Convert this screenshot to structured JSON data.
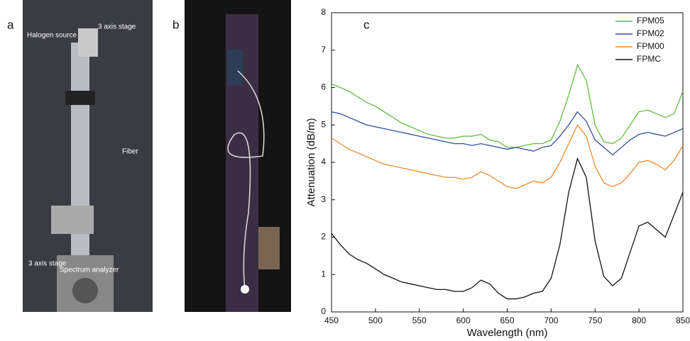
{
  "panels": {
    "a": "a",
    "b": "b"
  },
  "photo_labels": [
    "Halogen source",
    "3 axis stage",
    "Fiber",
    "3 axis stage",
    "Spectrum analyzer"
  ],
  "chart_data": {
    "type": "line",
    "label": "c",
    "x_label": "Wavelength  (nm)",
    "y_label": "Attenuation (dB/m)",
    "x": [
      450,
      460,
      470,
      480,
      490,
      500,
      510,
      520,
      530,
      540,
      550,
      560,
      570,
      580,
      590,
      600,
      610,
      620,
      630,
      640,
      650,
      660,
      670,
      680,
      690,
      700,
      710,
      720,
      730,
      740,
      750,
      760,
      770,
      780,
      790,
      800,
      810,
      820,
      830,
      840,
      850
    ],
    "series": [
      {
        "name": "FPM05",
        "color": "#5cbf3d",
        "values": [
          6.1,
          6.0,
          5.9,
          5.75,
          5.6,
          5.5,
          5.35,
          5.2,
          5.05,
          4.95,
          4.85,
          4.75,
          4.7,
          4.65,
          4.65,
          4.7,
          4.7,
          4.75,
          4.6,
          4.55,
          4.4,
          4.4,
          4.45,
          4.5,
          4.5,
          4.6,
          5.1,
          5.8,
          6.6,
          6.2,
          5.0,
          4.55,
          4.5,
          4.65,
          5.0,
          5.35,
          5.4,
          5.3,
          5.2,
          5.3,
          5.9
        ]
      },
      {
        "name": "FPM02",
        "color": "#2f4e9e",
        "values": [
          5.35,
          5.3,
          5.2,
          5.1,
          5.0,
          4.95,
          4.9,
          4.85,
          4.8,
          4.75,
          4.7,
          4.65,
          4.6,
          4.55,
          4.5,
          4.5,
          4.45,
          4.5,
          4.45,
          4.4,
          4.35,
          4.4,
          4.35,
          4.3,
          4.4,
          4.45,
          4.7,
          5.0,
          5.35,
          5.1,
          4.6,
          4.4,
          4.2,
          4.4,
          4.6,
          4.75,
          4.8,
          4.75,
          4.7,
          4.8,
          4.9
        ]
      },
      {
        "name": "FPM00",
        "color": "#f08a2c",
        "values": [
          4.65,
          4.5,
          4.35,
          4.25,
          4.15,
          4.05,
          3.95,
          3.9,
          3.85,
          3.8,
          3.75,
          3.7,
          3.65,
          3.6,
          3.6,
          3.55,
          3.6,
          3.75,
          3.65,
          3.5,
          3.35,
          3.3,
          3.4,
          3.5,
          3.45,
          3.6,
          4.0,
          4.5,
          5.0,
          4.7,
          3.9,
          3.45,
          3.35,
          3.45,
          3.7,
          4.0,
          4.05,
          3.95,
          3.8,
          4.05,
          4.45
        ]
      },
      {
        "name": "FPMC",
        "color": "#111111",
        "values": [
          2.1,
          1.8,
          1.55,
          1.4,
          1.3,
          1.15,
          1.0,
          0.9,
          0.8,
          0.75,
          0.7,
          0.65,
          0.6,
          0.6,
          0.55,
          0.55,
          0.65,
          0.85,
          0.75,
          0.5,
          0.35,
          0.35,
          0.4,
          0.5,
          0.55,
          0.9,
          1.8,
          3.2,
          4.1,
          3.6,
          1.9,
          0.95,
          0.7,
          0.9,
          1.6,
          2.3,
          2.4,
          2.2,
          2.0,
          2.6,
          3.2
        ]
      }
    ],
    "xlim": [
      450,
      850
    ],
    "xticks": [
      450,
      500,
      550,
      600,
      650,
      700,
      750,
      800,
      850
    ],
    "ylim": [
      0,
      8
    ],
    "yticks": [
      0,
      1,
      2,
      3,
      4,
      5,
      6,
      7,
      8
    ],
    "legend": "upper right"
  }
}
